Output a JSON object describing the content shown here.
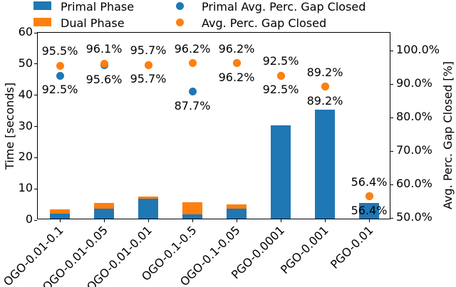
{
  "legend": {
    "items": [
      {
        "label": "Primal Phase",
        "marker": "square",
        "color": "#1f77b4"
      },
      {
        "label": "Dual Phase",
        "marker": "square",
        "color": "#ff7f0e"
      },
      {
        "label": "Primal Avg. Perc. Gap Closed",
        "marker": "circle",
        "color": "#1f77b4"
      },
      {
        "label": "Avg. Perc. Gap Closed",
        "marker": "circle",
        "color": "#ff7f0e"
      }
    ]
  },
  "chart_data": {
    "type": "bar",
    "subtype": "stacked-bar-with-scatter-overlay",
    "categories": [
      "OGO-0.01-0.1",
      "OGO-0.01-0.05",
      "OGO-0.01-0.01",
      "OGO-0.1-0.5",
      "OGO-0.1-0.05",
      "PGO-0.0001",
      "PGO-0.001",
      "PGO-0.01"
    ],
    "series": [
      {
        "name": "Primal Phase",
        "type": "bar",
        "stack": "time",
        "axis": "left",
        "color": "#1f77b4",
        "values": [
          1.5,
          3.2,
          6.3,
          1.4,
          3.2,
          30,
          35,
          5
        ]
      },
      {
        "name": "Dual Phase",
        "type": "bar",
        "stack": "time",
        "axis": "left",
        "color": "#ff7f0e",
        "values": [
          1.5,
          1.8,
          0.7,
          3.8,
          1.3,
          0,
          0,
          0
        ]
      },
      {
        "name": "Primal Avg. Perc. Gap Closed",
        "type": "scatter",
        "axis": "right",
        "color": "#1f77b4",
        "values": [
          92.5,
          95.6,
          95.7,
          87.7,
          96.2,
          92.5,
          89.2,
          56.4
        ],
        "labels": [
          "92.5%",
          "95.6%",
          "95.7%",
          "87.7%",
          "96.2%",
          "92.5%",
          "89.2%",
          "56.4%"
        ]
      },
      {
        "name": "Avg. Perc. Gap Closed",
        "type": "scatter",
        "axis": "right",
        "color": "#ff7f0e",
        "values": [
          95.5,
          96.1,
          95.7,
          96.2,
          96.2,
          92.5,
          89.2,
          56.4
        ],
        "labels": [
          "95.5%",
          "96.1%",
          "95.7%",
          "96.2%",
          "96.2%",
          "92.5%",
          "89.2%",
          "56.4%"
        ]
      }
    ],
    "left_axis": {
      "label": "Time [seconds]",
      "lim": [
        0,
        60
      ],
      "ticks": [
        0,
        10,
        20,
        30,
        40,
        50,
        60
      ],
      "tick_labels": [
        "0",
        "10",
        "20",
        "30",
        "40",
        "50",
        "60"
      ]
    },
    "right_axis": {
      "label": "Avg. Perc. Gap Closed [%]",
      "lim_percent": [
        50,
        100
      ],
      "ticks": [
        50,
        60,
        70,
        80,
        90,
        100
      ],
      "tick_labels": [
        "50.0%",
        "60.0%",
        "70.0%",
        "80.0%",
        "90.0%",
        "100.0%"
      ]
    },
    "grid": false,
    "legend_position": "top"
  }
}
